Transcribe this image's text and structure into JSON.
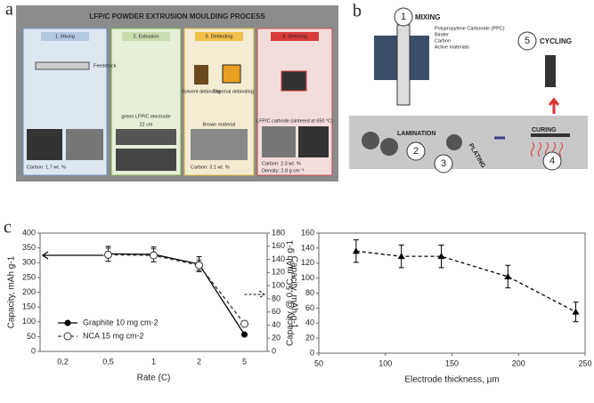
{
  "panels": {
    "a": {
      "label": "a",
      "title": "LFP/C POWDER EXTRUSION MOULDING PROCESS",
      "steps": [
        "1. Mixing",
        "2. Extrusion",
        "3. Debinding",
        "4. Sintering"
      ],
      "notes": [
        "Feedstock",
        "Carbon: 1.7 wt. %",
        "green LFP/C electrode",
        "22 cm",
        "Solvent debinding",
        "Thermal debinding",
        "Brown material",
        "Carbon: 3.1 wt. %",
        "LFP/C cathode (sintered at 650 °C)",
        "Carbon: 2.3 wt. %",
        "Density: 2.8 g cm⁻³"
      ]
    },
    "b": {
      "label": "b",
      "steps": [
        {
          "num": "1",
          "label": "MIXING"
        },
        {
          "num": "2",
          "label": "LAMINATION"
        },
        {
          "num": "3",
          "label": "PLATING"
        },
        {
          "num": "4",
          "label": "CURING"
        },
        {
          "num": "5",
          "label": "CYCLING"
        }
      ],
      "ingredients": [
        "Polypropylene Carbonate (PPC)",
        "Binder",
        "Carbon",
        "Active materials"
      ]
    },
    "c": {
      "label": "c"
    }
  },
  "chart_data": [
    {
      "type": "line",
      "x_label": "Rate (C)",
      "y_label": "Capacity, mAh g-1",
      "y2_label": "Capacity, mAh g-1",
      "categories": [
        "0,2",
        "0,5",
        "1",
        "2",
        "5"
      ],
      "series": [
        {
          "name": "Graphite 10 mg cm-2",
          "color": "#000000",
          "marker": "circle",
          "dash": "solid",
          "values": [
            null,
            330,
            328,
            295,
            57
          ],
          "errors": [
            null,
            25,
            25,
            25,
            null
          ]
        },
        {
          "name": "NCA 15 mg cm-2",
          "color": "#333333",
          "marker": "open-circle",
          "dash": "dashed",
          "axis": "y2",
          "values": [
            null,
            147,
            146,
            131,
            42
          ],
          "errors": [
            null,
            10,
            10,
            8,
            null
          ]
        }
      ],
      "ylim": [
        0,
        400
      ],
      "yticks": [
        0,
        50,
        100,
        150,
        200,
        250,
        300,
        350,
        400
      ],
      "y2lim": [
        0,
        180
      ],
      "y2ticks": [
        0,
        20,
        40,
        60,
        80,
        100,
        120,
        140,
        160,
        180
      ],
      "legend": "lower-left"
    },
    {
      "type": "line",
      "x_label": "Electrode thickness, µm",
      "y_label": "Capacity @ 0.5C, mAh g-1",
      "x": [
        78,
        112,
        142,
        192,
        243
      ],
      "series": [
        {
          "color": "#000000",
          "marker": "triangle",
          "dash": "dashed",
          "values": [
            136,
            129,
            129,
            102,
            55
          ],
          "errors": [
            15,
            15,
            15,
            15,
            13
          ]
        }
      ],
      "xlim": [
        50,
        250
      ],
      "xticks": [
        50,
        100,
        150,
        200,
        250
      ],
      "ylim": [
        0,
        160
      ],
      "yticks": [
        0,
        20,
        40,
        60,
        80,
        100,
        120,
        140,
        160
      ]
    }
  ]
}
